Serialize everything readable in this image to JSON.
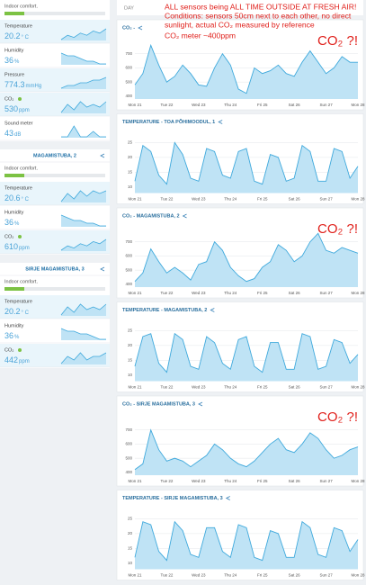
{
  "tabs": [
    "DAY"
  ],
  "annotation": [
    "ALL sensors being ALL TIME OUTSIDE AT FRESH AIR!",
    "Conditions: sensors 50cm next to each other, no direct",
    "sunlight, actual CO₂ measured by reference",
    "CO₂ meter  ~400ppm"
  ],
  "modules": [
    {
      "comfort": "Indoor comfort.",
      "comfort_color": "#7cc243",
      "metrics": [
        {
          "label": "Temperature",
          "value": 20.2,
          "unit": "° C",
          "highlight": true,
          "spark": [
            3,
            5,
            4,
            6,
            5,
            7,
            6,
            8
          ]
        },
        {
          "label": "Humidity",
          "value": 36,
          "unit": "%",
          "highlight": false,
          "spark": [
            8,
            7,
            7,
            6,
            5,
            5,
            4,
            4
          ]
        },
        {
          "label": "Pressure",
          "value": 774.3,
          "unit": "mmHg",
          "highlight": true,
          "spark": [
            4,
            5,
            5,
            6,
            6,
            7,
            7,
            8
          ]
        },
        {
          "label": "CO₂",
          "value": 530,
          "unit": "ppm",
          "highlight": true,
          "dot": "#7cc243",
          "spark": [
            3,
            6,
            4,
            7,
            5,
            6,
            5,
            7
          ]
        },
        {
          "label": "Sound meter",
          "value": 43,
          "unit": "dB",
          "highlight": false,
          "spark": [
            3,
            3,
            5,
            3,
            3,
            4,
            3,
            3
          ]
        }
      ]
    },
    {
      "name": "MAGAMISTUBA, 2",
      "comfort": "Indoor comfort.",
      "comfort_color": "#7cc243",
      "metrics": [
        {
          "label": "Temperature",
          "value": 20.6,
          "unit": "° C",
          "highlight": true,
          "spark": [
            3,
            6,
            4,
            7,
            5,
            7,
            6,
            7
          ]
        },
        {
          "label": "Humidity",
          "value": 36,
          "unit": "%",
          "highlight": false,
          "spark": [
            8,
            7,
            6,
            6,
            5,
            5,
            4,
            4
          ]
        },
        {
          "label": "CO₂",
          "value": 610,
          "unit": "ppm",
          "highlight": true,
          "dot": "#7cc243",
          "spark": [
            3,
            5,
            4,
            6,
            5,
            7,
            6,
            8
          ]
        }
      ]
    },
    {
      "name": "SIRJE MAGAMISTUBA, 3",
      "comfort": "Indoor comfort.",
      "comfort_color": "#7cc243",
      "metrics": [
        {
          "label": "Temperature",
          "value": 20.2,
          "unit": "° C",
          "highlight": true,
          "spark": [
            3,
            6,
            4,
            7,
            5,
            6,
            5,
            7
          ]
        },
        {
          "label": "Humidity",
          "value": 36,
          "unit": "%",
          "highlight": false,
          "spark": [
            8,
            7,
            7,
            6,
            6,
            5,
            4,
            4
          ]
        },
        {
          "label": "CO₂",
          "value": 442,
          "unit": "ppm",
          "highlight": true,
          "dot": "#7cc243",
          "spark": [
            4,
            6,
            5,
            7,
            5,
            6,
            6,
            7
          ]
        }
      ]
    }
  ],
  "charts": [
    {
      "type": "area",
      "title": "CO₂ -",
      "badge": "CO₂ ?!",
      "ylim": [
        380,
        800
      ],
      "yticks": [
        400,
        500,
        600,
        700
      ],
      "color": "#3fa9dc",
      "fill": "#bfe3f5",
      "day_labels": [
        "Mon 21",
        "Tue 22",
        "Wed 23",
        "Thu 24",
        "Fri 25",
        "Sat 26",
        "Sun 27",
        "Mon 28"
      ],
      "values": [
        480,
        560,
        760,
        620,
        500,
        540,
        620,
        560,
        480,
        470,
        600,
        700,
        620,
        450,
        420,
        600,
        560,
        580,
        620,
        560,
        540,
        640,
        720,
        640,
        560,
        600,
        680,
        640,
        640
      ]
    },
    {
      "type": "area",
      "title": "TEMPERATURE - TOA PÕHIMOODUL, 1",
      "ylim": [
        8,
        28
      ],
      "yticks": [
        10,
        15,
        20,
        25
      ],
      "color": "#3fa9dc",
      "fill": "#bfe3f5",
      "day_labels": [
        "Mon 21",
        "Tue 22",
        "Wed 23",
        "Thu 24",
        "Fri 25",
        "Sat 26",
        "Sun 27",
        "Mon 28"
      ],
      "values": [
        12,
        24,
        22,
        14,
        11,
        25,
        21,
        13,
        12,
        23,
        22,
        14,
        13,
        22,
        23,
        12,
        11,
        21,
        20,
        12,
        13,
        24,
        22,
        12,
        12,
        23,
        22,
        13,
        17
      ]
    },
    {
      "type": "area",
      "title": "CO₂ - MAGAMISTUBA, 2",
      "badge": "CO₂ ?!",
      "ylim": [
        380,
        800
      ],
      "yticks": [
        400,
        500,
        600,
        700
      ],
      "color": "#3fa9dc",
      "fill": "#bfe3f5",
      "day_labels": [
        "Mon 21",
        "Tue 22",
        "Wed 23",
        "Thu 24",
        "Fri 25",
        "Sat 26",
        "Sun 27",
        "Mon 28"
      ],
      "values": [
        420,
        480,
        650,
        560,
        480,
        520,
        480,
        430,
        540,
        560,
        700,
        640,
        520,
        460,
        420,
        440,
        520,
        560,
        680,
        640,
        560,
        600,
        700,
        760,
        640,
        620,
        660,
        640,
        620
      ]
    },
    {
      "type": "area",
      "title": "TEMPERATURE - MAGAMISTUBA, 2",
      "ylim": [
        8,
        28
      ],
      "yticks": [
        10,
        15,
        20,
        25
      ],
      "color": "#3fa9dc",
      "fill": "#bfe3f5",
      "day_labels": [
        "Mon 21",
        "Tue 22",
        "Wed 23",
        "Thu 24",
        "Fri 25",
        "Sat 26",
        "Sun 27",
        "Mon 28"
      ],
      "values": [
        13,
        23,
        24,
        14,
        11,
        24,
        22,
        13,
        12,
        23,
        21,
        14,
        12,
        22,
        23,
        13,
        11,
        21,
        21,
        12,
        12,
        24,
        23,
        12,
        13,
        22,
        21,
        14,
        17
      ]
    },
    {
      "type": "area",
      "title": "CO₂ - SIRJE MAGAMISTUBA, 3",
      "badge": "CO₂ ?!",
      "ylim": [
        380,
        800
      ],
      "yticks": [
        400,
        500,
        600,
        700
      ],
      "color": "#3fa9dc",
      "fill": "#bfe3f5",
      "day_labels": [
        "Mon 21",
        "Tue 22",
        "Wed 23",
        "Thu 24",
        "Fri 25",
        "Sat 26",
        "Sun 27",
        "Mon 28"
      ],
      "values": [
        420,
        460,
        700,
        560,
        480,
        500,
        480,
        440,
        480,
        520,
        600,
        560,
        500,
        460,
        440,
        480,
        540,
        600,
        640,
        560,
        540,
        600,
        680,
        640,
        560,
        500,
        520,
        560,
        580
      ]
    },
    {
      "type": "area",
      "title": "TEMPERATURE - SIRJE MAGAMISTUBA, 3",
      "ylim": [
        8,
        28
      ],
      "yticks": [
        10,
        15,
        20,
        25
      ],
      "color": "#3fa9dc",
      "fill": "#bfe3f5",
      "day_labels": [
        "Mon 21",
        "Tue 22",
        "Wed 23",
        "Thu 24",
        "Fri 25",
        "Sat 26",
        "Sun 27",
        "Mon 28"
      ],
      "values": [
        12,
        24,
        23,
        14,
        11,
        24,
        21,
        13,
        12,
        22,
        22,
        14,
        12,
        23,
        22,
        12,
        11,
        21,
        20,
        12,
        12,
        24,
        22,
        13,
        12,
        22,
        21,
        14,
        18
      ]
    }
  ]
}
